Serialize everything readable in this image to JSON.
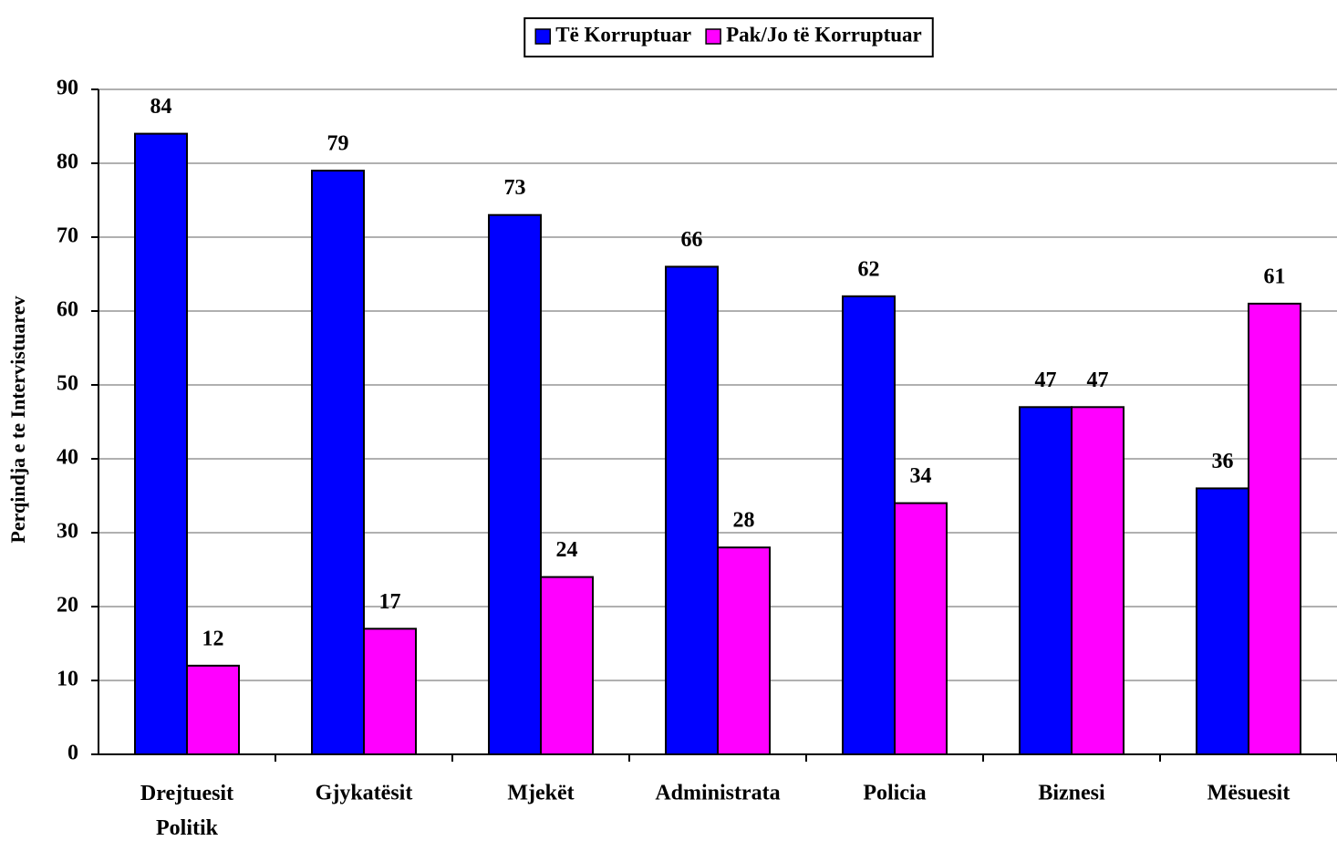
{
  "chart_data": {
    "type": "bar",
    "y_label": "Perqindja e te Intervistuarev",
    "categories": [
      "Drejtuesit Politik",
      "Gjykatësit",
      "Mjekët",
      "Administrata",
      "Policia",
      "Biznesi",
      "Mësuesit"
    ],
    "series": [
      {
        "name": "Të Korruptuar",
        "color": "#0000ff",
        "values": [
          84,
          79,
          73,
          66,
          62,
          47,
          36
        ]
      },
      {
        "name": "Pak/Jo të Korruptuar",
        "color": "#ff00ff",
        "values": [
          12,
          17,
          24,
          28,
          34,
          47,
          61
        ]
      }
    ],
    "ylim": [
      0,
      90
    ],
    "yticks": [
      0,
      10,
      20,
      30,
      40,
      50,
      60,
      70,
      80,
      90
    ],
    "grid": true,
    "legend": "top"
  }
}
